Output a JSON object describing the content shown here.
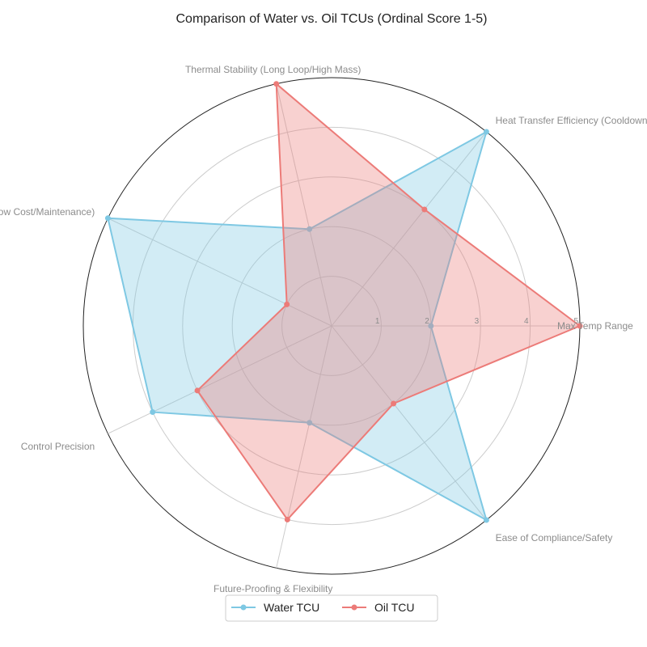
{
  "chart_data": {
    "type": "radar",
    "title": "Comparison of Water vs. Oil TCUs (Ordinal Score 1-5)",
    "axes": [
      "Max Temp Range",
      "Heat Transfer Efficiency (Cooldown)",
      "Thermal Stability (Long Loop/High Mass)",
      "Cost-Effectiveness (Low Cost/Maintenance)",
      "Control Precision",
      "Future-Proofing & Flexibility",
      "Ease of Compliance/Safety"
    ],
    "rlim": [
      0,
      5
    ],
    "r_ticks": [
      "1",
      "2",
      "3",
      "4",
      "5"
    ],
    "series": [
      {
        "name": "Water TCU",
        "values": [
          2,
          5,
          2,
          5,
          4,
          2,
          5
        ],
        "color": "#7ec8e3"
      },
      {
        "name": "Oil TCU",
        "values": [
          5,
          3,
          5,
          1,
          3,
          4,
          2
        ],
        "color": "#ec7b78"
      }
    ],
    "grid": true,
    "legend": "bottom-center"
  }
}
